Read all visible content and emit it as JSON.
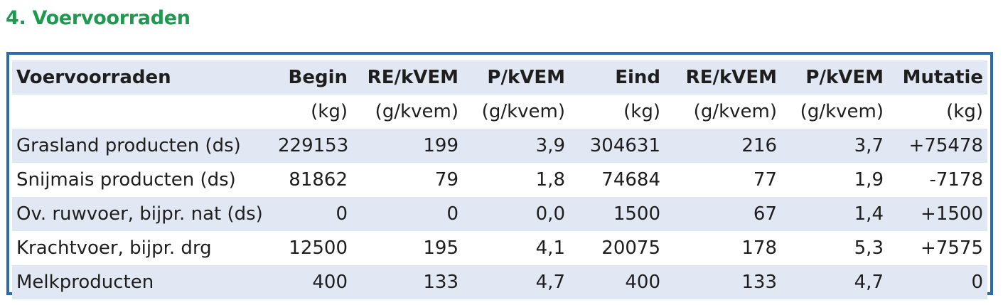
{
  "section": {
    "title": "4. Voervoorraden"
  },
  "table": {
    "header": [
      "Voervoorraden",
      "Begin",
      "RE/kVEM",
      "P/kVEM",
      "Eind",
      "RE/kVEM",
      "P/kVEM",
      "Mutatie"
    ],
    "units": [
      "",
      "(kg)",
      "(g/kvem)",
      "(g/kvem)",
      "(kg)",
      "(g/kvem)",
      "(g/kvem)",
      "(kg)"
    ],
    "rows": [
      [
        "Grasland producten (ds)",
        "229153",
        "199",
        "3,9",
        "304631",
        "216",
        "3,7",
        "+75478"
      ],
      [
        "Snijmais producten (ds)",
        "81862",
        "79",
        "1,8",
        "74684",
        "77",
        "1,9",
        "-7178"
      ],
      [
        "Ov. ruwvoer, bijpr. nat (ds)",
        "0",
        "0",
        "0,0",
        "1500",
        "67",
        "1,4",
        "+1500"
      ],
      [
        "Krachtvoer, bijpr. drg",
        "12500",
        "195",
        "4,1",
        "20075",
        "178",
        "5,3",
        "+7575"
      ],
      [
        "Melkproducten",
        "400",
        "133",
        "4,7",
        "400",
        "133",
        "4,7",
        "0"
      ]
    ]
  },
  "colors": {
    "title": "#1d9a4d",
    "border": "#2b6cb0",
    "row_shade": "#e1e8f4"
  }
}
